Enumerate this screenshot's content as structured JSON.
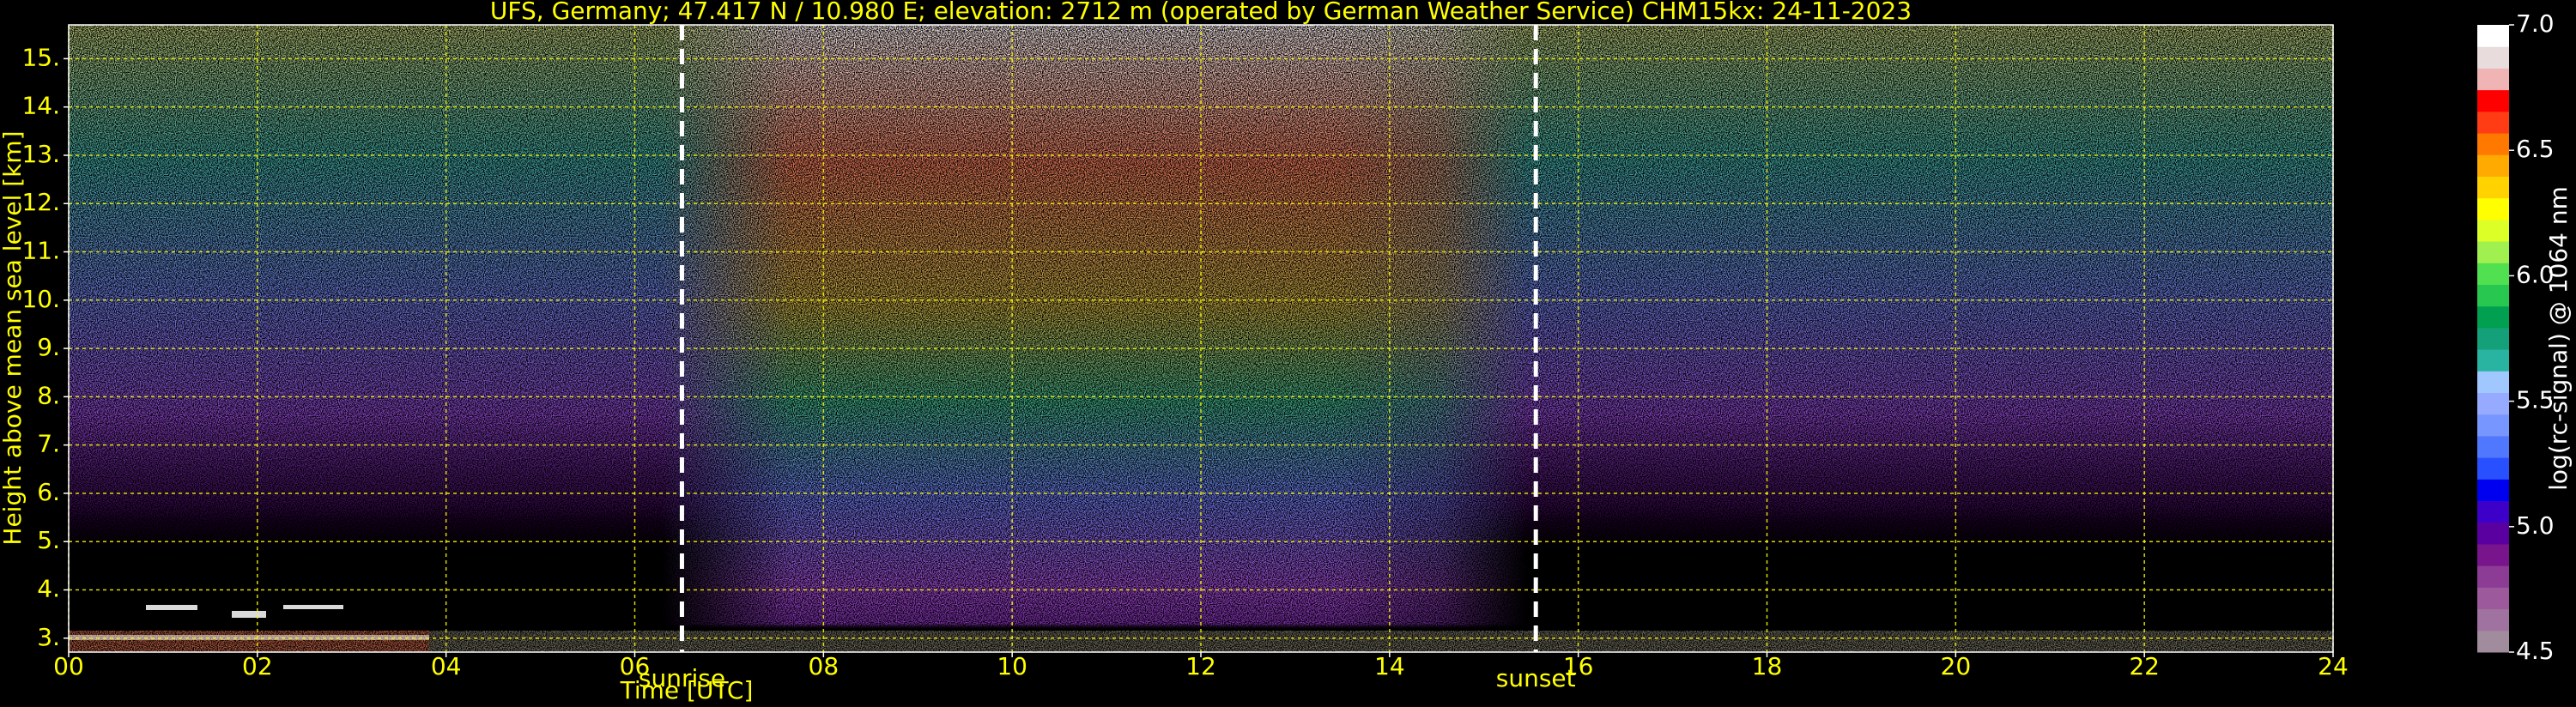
{
  "chart_data": {
    "type": "heatmap",
    "title": "UFS, Germany; 47.417 N / 10.980 E; elevation: 2712 m  (operated by German Weather Service)    CHM15kx: 24-11-2023",
    "x_label": "Time [UTC]",
    "y_label": "Height above mean sea level [km]",
    "xlim": [
      0,
      24
    ],
    "xticks": [
      {
        "value": 0,
        "label": "00"
      },
      {
        "value": 2,
        "label": "02"
      },
      {
        "value": 4,
        "label": "04"
      },
      {
        "value": 6,
        "label": "06"
      },
      {
        "value": 8,
        "label": "08"
      },
      {
        "value": 10,
        "label": "10"
      },
      {
        "value": 12,
        "label": "12"
      },
      {
        "value": 14,
        "label": "14"
      },
      {
        "value": 16,
        "label": "16"
      },
      {
        "value": 18,
        "label": "18"
      },
      {
        "value": 20,
        "label": "20"
      },
      {
        "value": 22,
        "label": "22"
      },
      {
        "value": 24,
        "label": "24"
      }
    ],
    "ylim": [
      2.712,
      15.7
    ],
    "yticks": [
      {
        "value": 3,
        "label": "3."
      },
      {
        "value": 4,
        "label": "4."
      },
      {
        "value": 5,
        "label": "5."
      },
      {
        "value": 6,
        "label": "6."
      },
      {
        "value": 7,
        "label": "7."
      },
      {
        "value": 8,
        "label": "8."
      },
      {
        "value": 9,
        "label": "9."
      },
      {
        "value": 10,
        "label": "10."
      },
      {
        "value": 11,
        "label": "11."
      },
      {
        "value": 12,
        "label": "12."
      },
      {
        "value": 13,
        "label": "13."
      },
      {
        "value": 14,
        "label": "14."
      },
      {
        "value": 15,
        "label": "15."
      }
    ],
    "grid": true,
    "grid_color": "#ffff00",
    "text_color": "#ffff00",
    "annotations": [
      {
        "label": "sunrise",
        "x": 6.5
      },
      {
        "label": "sunset",
        "x": 15.55
      }
    ],
    "colorbar": {
      "label": "log(rc-signal) @ 1064 nm",
      "lim": [
        4.5,
        7.0
      ],
      "ticks": [
        {
          "value": 4.5,
          "label": "4.5"
        },
        {
          "value": 5.0,
          "label": "5.0"
        },
        {
          "value": 5.5,
          "label": "5.5"
        },
        {
          "value": 6.0,
          "label": "6.0"
        },
        {
          "value": 6.5,
          "label": "6.5"
        },
        {
          "value": 7.0,
          "label": "7.0"
        }
      ],
      "colors": [
        "#a08c9c",
        "#a0729f",
        "#9c5a9c",
        "#8c3c94",
        "#78148c",
        "#5a00a0",
        "#3c00c8",
        "#0000f0",
        "#2850ff",
        "#5078ff",
        "#7896ff",
        "#96aaff",
        "#a0c8ff",
        "#28b4a0",
        "#14a078",
        "#00a050",
        "#28c850",
        "#50e050",
        "#a0f050",
        "#dcff28",
        "#ffff00",
        "#ffd200",
        "#ffaa00",
        "#ff7800",
        "#ff3c14",
        "#ff0000",
        "#f0b4b4",
        "#e8dcdc",
        "#ffffff"
      ]
    }
  }
}
